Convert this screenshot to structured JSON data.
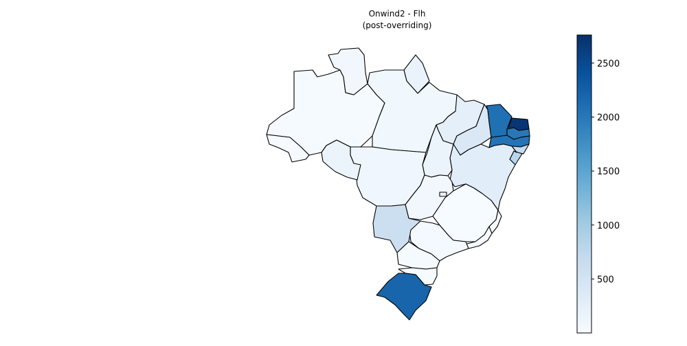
{
  "title": {
    "line1": "Onwind2 - Flh",
    "line2": "(post-overriding)"
  },
  "colorbar": {
    "colormap": "Blues",
    "min": 0,
    "max": 2760,
    "ticks": [
      "500",
      "1000",
      "1500",
      "2000",
      "2500"
    ],
    "tick_values": [
      500,
      1000,
      1500,
      2000,
      2500
    ]
  },
  "map": {
    "region": "Brazil",
    "states": [
      {
        "id": "AM",
        "value": 30
      },
      {
        "id": "RR",
        "value": 80
      },
      {
        "id": "PA",
        "value": 90
      },
      {
        "id": "AP",
        "value": 180
      },
      {
        "id": "AC",
        "value": 30
      },
      {
        "id": "RO",
        "value": 170
      },
      {
        "id": "MT",
        "value": 100
      },
      {
        "id": "TO",
        "value": 160
      },
      {
        "id": "MA",
        "value": 250
      },
      {
        "id": "PI",
        "value": 400
      },
      {
        "id": "CE",
        "value": 2080
      },
      {
        "id": "RN",
        "value": 2700
      },
      {
        "id": "PB",
        "value": 2000
      },
      {
        "id": "PE",
        "value": 2050
      },
      {
        "id": "AL",
        "value": 700
      },
      {
        "id": "SE",
        "value": 800
      },
      {
        "id": "BA",
        "value": 300
      },
      {
        "id": "GO",
        "value": 80
      },
      {
        "id": "DF",
        "value": 60
      },
      {
        "id": "MG",
        "value": 10
      },
      {
        "id": "ES",
        "value": 10
      },
      {
        "id": "RJ",
        "value": 20
      },
      {
        "id": "SP",
        "value": 50
      },
      {
        "id": "MS",
        "value": 600
      },
      {
        "id": "PR",
        "value": 30
      },
      {
        "id": "SC",
        "value": 10
      },
      {
        "id": "RS",
        "value": 2200
      }
    ]
  }
}
